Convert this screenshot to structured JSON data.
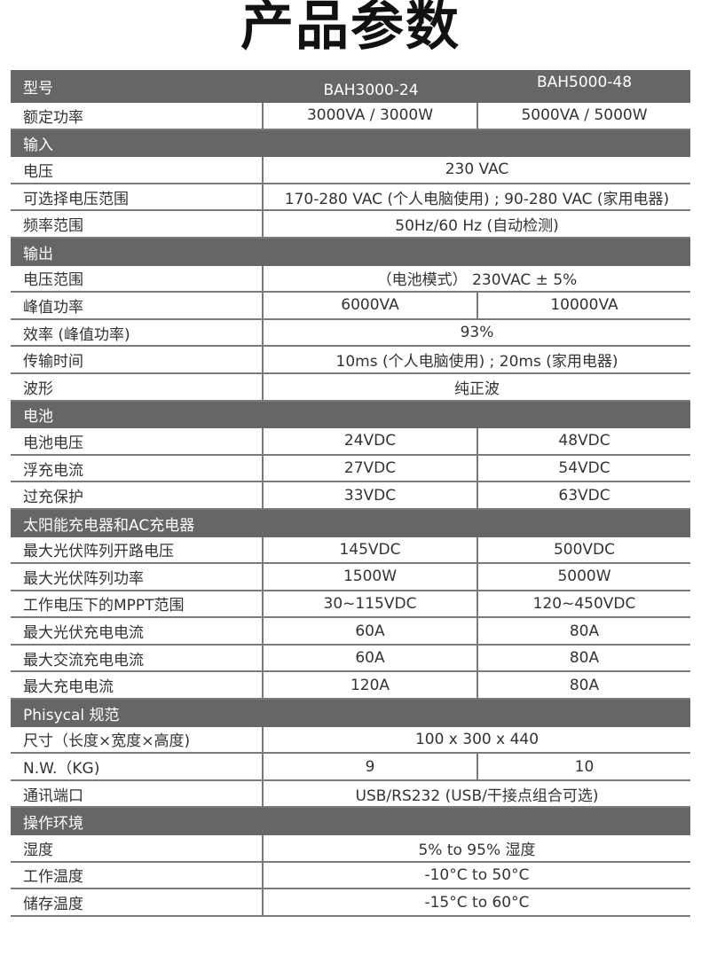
{
  "title": "产品参数",
  "header": {
    "label": "型号",
    "models": [
      "BAH3000-24",
      "BAH5000-48"
    ]
  },
  "rows": [
    {
      "type": "row",
      "label": "额定功率",
      "values": [
        "3000VA / 3000W",
        "5000VA / 5000W"
      ]
    },
    {
      "type": "section",
      "label": "输入"
    },
    {
      "type": "row",
      "label": "电压",
      "values": [
        "230 VAC"
      ]
    },
    {
      "type": "row",
      "label": "可选择电压范围",
      "values": [
        "170-280 VAC (个人电脑使用) ; 90-280 VAC (家用电器)"
      ]
    },
    {
      "type": "row",
      "label": "频率范围",
      "values": [
        "50Hz/60 Hz (自动检测)"
      ]
    },
    {
      "type": "section",
      "label": "输出"
    },
    {
      "type": "row",
      "label": "电压范围",
      "values": [
        "（电池模式） 230VAC ± 5%"
      ]
    },
    {
      "type": "row",
      "label": "峰值功率",
      "values": [
        "6000VA",
        "10000VA"
      ]
    },
    {
      "type": "row",
      "label": "效率 (峰值功率)",
      "values": [
        "93%"
      ]
    },
    {
      "type": "row",
      "label": "传输时间",
      "values": [
        "10ms (个人电脑使用) ; 20ms (家用电器)"
      ]
    },
    {
      "type": "row",
      "label": "波形",
      "values": [
        "纯正波"
      ]
    },
    {
      "type": "section",
      "label": "电池"
    },
    {
      "type": "row",
      "label": "电池电压",
      "values": [
        "24VDC",
        "48VDC"
      ]
    },
    {
      "type": "row",
      "label": "浮充电流",
      "values": [
        "27VDC",
        "54VDC"
      ]
    },
    {
      "type": "row",
      "label": "过充保护",
      "values": [
        "33VDC",
        "63VDC"
      ]
    },
    {
      "type": "section",
      "label": "太阳能充电器和AC充电器"
    },
    {
      "type": "row",
      "label": "最大光伏阵列开路电压",
      "values": [
        "145VDC",
        "500VDC"
      ]
    },
    {
      "type": "row",
      "label": "最大光伏阵列功率",
      "values": [
        "1500W",
        "5000W"
      ]
    },
    {
      "type": "row",
      "label": "工作电压下的MPPT范围",
      "values": [
        "30~115VDC",
        "120~450VDC"
      ]
    },
    {
      "type": "row",
      "label": "最大光伏充电电流",
      "values": [
        "60A",
        "80A"
      ]
    },
    {
      "type": "row",
      "label": "最大交流充电电流",
      "values": [
        "60A",
        "80A"
      ]
    },
    {
      "type": "row",
      "label": "最大充电电流",
      "values": [
        "120A",
        "80A"
      ]
    },
    {
      "type": "section",
      "label": "Phisycal 规范"
    },
    {
      "type": "row",
      "label": "尺寸（长度×宽度×高度)",
      "values": [
        "100 x 300 x 440"
      ]
    },
    {
      "type": "row",
      "label": "N.W.（KG)",
      "values": [
        "9",
        "10"
      ]
    },
    {
      "type": "row",
      "label": "通讯端口",
      "values": [
        "USB/RS232 (USB/干接点组合可选)"
      ]
    },
    {
      "type": "section",
      "label": "操作环境"
    },
    {
      "type": "row",
      "label": "湿度",
      "values": [
        "5% to 95% 湿度"
      ]
    },
    {
      "type": "row",
      "label": "工作温度",
      "values": [
        "-10°C to 50°C"
      ]
    },
    {
      "type": "row",
      "label": "储存温度",
      "values": [
        "-15°C to 60°C"
      ]
    }
  ]
}
